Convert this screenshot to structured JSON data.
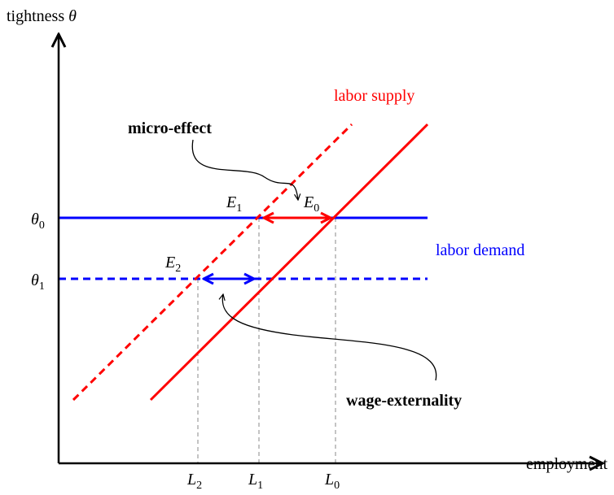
{
  "axes": {
    "y_label": {
      "text": "tightness",
      "symbol": "θ"
    },
    "x_label": "employment"
  },
  "y_ticks": [
    {
      "symbol": "θ",
      "subscript": "0"
    },
    {
      "symbol": "θ",
      "subscript": "1"
    }
  ],
  "x_ticks": [
    {
      "symbol": "L",
      "subscript": "2"
    },
    {
      "symbol": "L",
      "subscript": "1"
    },
    {
      "symbol": "L",
      "subscript": "0"
    }
  ],
  "curves": {
    "supply": "labor supply",
    "demand": "labor demand"
  },
  "points": [
    {
      "symbol": "E",
      "subscript": "1"
    },
    {
      "symbol": "E",
      "subscript": "0"
    },
    {
      "symbol": "E",
      "subscript": "2"
    }
  ],
  "annotations": [
    "micro-effect",
    "wage-externality"
  ]
}
